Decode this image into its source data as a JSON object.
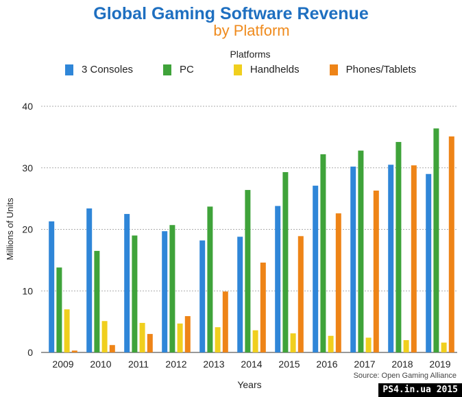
{
  "chart_data": {
    "type": "bar",
    "title": "Global Gaming Software Revenue",
    "subtitle": "by Platform",
    "legend_title": "Platforms",
    "legend_placement": "top",
    "xlabel": "Years",
    "ylabel": "Millions of Units",
    "ylim": [
      0,
      40
    ],
    "yticks": [
      "0",
      "10",
      "20",
      "30",
      "40"
    ],
    "grid": true,
    "categories": [
      "2009",
      "2010",
      "2011",
      "2012",
      "2013",
      "2014",
      "2015",
      "2016",
      "2017",
      "2018",
      "2019"
    ],
    "series": [
      {
        "name": "3 Consoles",
        "color": "#2f86d8",
        "values": [
          21.3,
          23.4,
          22.5,
          19.7,
          18.2,
          18.8,
          23.8,
          27.1,
          30.2,
          30.5,
          29.0
        ]
      },
      {
        "name": "PC",
        "color": "#3fa33a",
        "values": [
          13.8,
          16.5,
          19.0,
          20.7,
          23.7,
          26.4,
          29.3,
          32.2,
          32.8,
          34.2,
          36.4
        ]
      },
      {
        "name": "Handhelds",
        "color": "#f0cf1e",
        "values": [
          7.0,
          5.1,
          4.8,
          4.7,
          4.1,
          3.6,
          3.1,
          2.7,
          2.4,
          2.0,
          1.6
        ]
      },
      {
        "name": "Phones/Tablets",
        "color": "#ee8417",
        "values": [
          0.3,
          1.2,
          3.0,
          5.9,
          9.9,
          14.6,
          18.9,
          22.6,
          26.3,
          30.4,
          35.1
        ]
      }
    ],
    "source": "Source: Open Gaming Alliance"
  },
  "watermark": "PS4.in.ua  2015"
}
